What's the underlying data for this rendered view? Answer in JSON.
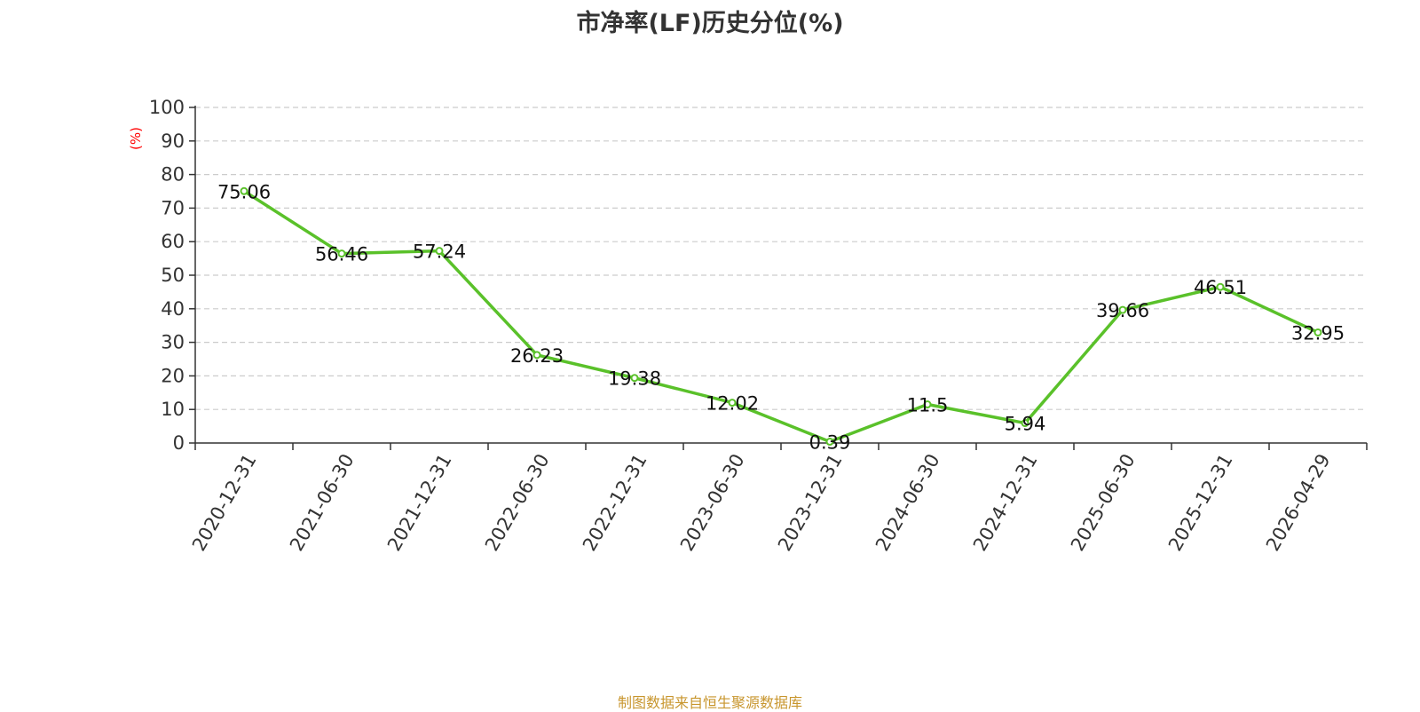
{
  "colors": {
    "line": "#5ac12a",
    "axis": "#333333",
    "grid": "#cccccc",
    "ylabel": "#ff0000",
    "source": "#c8962e"
  },
  "footer": {
    "source": "制图数据来自恒生聚源数据库"
  },
  "chart_data": {
    "type": "line",
    "title": "市净率(LF)历史分位(%)",
    "ylabel": "(%)",
    "xlabel": "",
    "ylim": [
      0,
      100
    ],
    "yticks": [
      0,
      10,
      20,
      30,
      40,
      50,
      60,
      70,
      80,
      90,
      100
    ],
    "grid": true,
    "categories": [
      "2020-12-31",
      "2021-06-30",
      "2021-12-31",
      "2022-06-30",
      "2022-12-31",
      "2023-06-30",
      "2023-12-31",
      "2024-06-30",
      "2024-12-31",
      "2025-06-30",
      "2025-12-31",
      "2026-04-29"
    ],
    "values": [
      75.06,
      56.46,
      57.24,
      26.23,
      19.38,
      12.02,
      0.39,
      11.5,
      5.94,
      39.66,
      46.51,
      32.95
    ],
    "value_labels": [
      "75.06",
      "56.46",
      "57.24",
      "26.23",
      "19.38",
      "12.02",
      "0.39",
      "11.5",
      "5.94",
      "39.66",
      "46.51",
      "32.95"
    ]
  }
}
